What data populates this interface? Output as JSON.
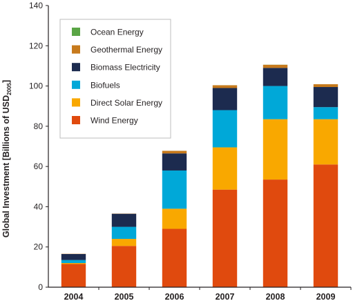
{
  "chart_data": {
    "type": "bar",
    "stacked": true,
    "title": "",
    "xlabel": "",
    "ylabel": "Global Investment  [Billions of USD",
    "ylabel_sub": "2005",
    "ylabel_tail": "]",
    "ylim": [
      0,
      140
    ],
    "yticks": [
      0,
      20,
      40,
      60,
      80,
      100,
      120,
      140
    ],
    "grid": false,
    "legend_position": "top-left",
    "categories": [
      "2004",
      "2005",
      "2006",
      "2007",
      "2008",
      "2009"
    ],
    "series": [
      {
        "name": "Wind Energy",
        "color": "#e04a0e",
        "values": [
          11.5,
          20.5,
          29,
          48.5,
          53.5,
          61
        ]
      },
      {
        "name": "Direct Solar Energy",
        "color": "#f9a800",
        "values": [
          0.5,
          3.5,
          10,
          21,
          30,
          22.5
        ]
      },
      {
        "name": "Biofuels",
        "color": "#00a8d8",
        "values": [
          1.5,
          6,
          19,
          18.5,
          16.5,
          6
        ]
      },
      {
        "name": "Biomass Electricity",
        "color": "#1c2b4f",
        "values": [
          3,
          6.5,
          8.5,
          11,
          9,
          10
        ]
      },
      {
        "name": "Geothermal Energy",
        "color": "#c77a1c",
        "values": [
          0.2,
          0.2,
          1.3,
          1.4,
          1.6,
          1.4
        ]
      },
      {
        "name": "Ocean Energy",
        "color": "#5aa545",
        "values": [
          0,
          0,
          0.1,
          0.1,
          0.1,
          0.1
        ]
      }
    ],
    "legend_order": [
      "Ocean Energy",
      "Geothermal Energy",
      "Biomass Electricity",
      "Biofuels",
      "Direct Solar Energy",
      "Wind Energy"
    ]
  }
}
